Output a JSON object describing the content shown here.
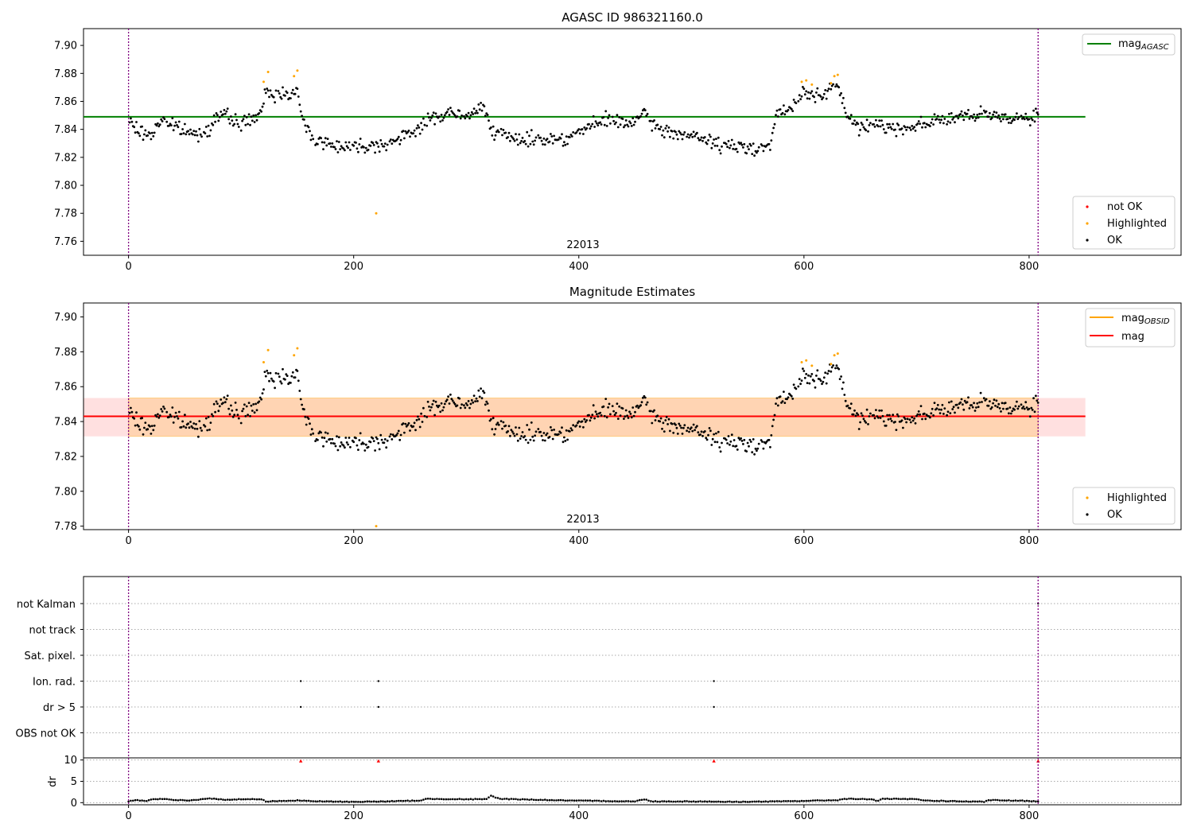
{
  "chart_data": [
    {
      "type": "scatter",
      "title": "AGASC ID 986321160.0",
      "annotation": "22013",
      "xlim": [
        -40,
        935
      ],
      "ylim": [
        7.75,
        7.912
      ],
      "xticks": [
        0,
        200,
        400,
        600,
        800
      ],
      "yticks": [
        7.76,
        7.78,
        7.8,
        7.82,
        7.84,
        7.86,
        7.88,
        7.9
      ],
      "ytick_labels": [
        "7.76",
        "7.78",
        "7.80",
        "7.82",
        "7.84",
        "7.86",
        "7.88",
        "7.90"
      ],
      "obs_boundaries": [
        0,
        808
      ],
      "reference_line": {
        "name": "mag",
        "subscript": "AGASC",
        "y": 7.849,
        "x_range": [
          -40,
          850
        ],
        "color": "#008000"
      },
      "legend_lines": [
        {
          "name": "mag",
          "subscript": "AGASC",
          "color": "#008000"
        }
      ],
      "legend_points": [
        {
          "name": "not OK",
          "color": "#ff0000"
        },
        {
          "name": "Highlighted",
          "color": "#ffa500"
        },
        {
          "name": "OK",
          "color": "#000000"
        }
      ],
      "trend": [
        [
          0,
          7.846
        ],
        [
          10,
          7.838
        ],
        [
          20,
          7.836
        ],
        [
          30,
          7.848
        ],
        [
          40,
          7.842
        ],
        [
          50,
          7.839
        ],
        [
          60,
          7.836
        ],
        [
          70,
          7.84
        ],
        [
          80,
          7.851
        ],
        [
          90,
          7.848
        ],
        [
          100,
          7.844
        ],
        [
          110,
          7.848
        ],
        [
          118,
          7.85
        ],
        [
          122,
          7.868
        ],
        [
          130,
          7.864
        ],
        [
          140,
          7.867
        ],
        [
          150,
          7.866
        ],
        [
          155,
          7.845
        ],
        [
          165,
          7.833
        ],
        [
          180,
          7.829
        ],
        [
          200,
          7.828
        ],
        [
          220,
          7.829
        ],
        [
          240,
          7.832
        ],
        [
          255,
          7.84
        ],
        [
          270,
          7.848
        ],
        [
          285,
          7.852
        ],
        [
          300,
          7.848
        ],
        [
          315,
          7.857
        ],
        [
          325,
          7.838
        ],
        [
          340,
          7.833
        ],
        [
          370,
          7.833
        ],
        [
          390,
          7.834
        ],
        [
          410,
          7.842
        ],
        [
          430,
          7.848
        ],
        [
          440,
          7.843
        ],
        [
          460,
          7.85
        ],
        [
          470,
          7.84
        ],
        [
          490,
          7.837
        ],
        [
          510,
          7.833
        ],
        [
          530,
          7.828
        ],
        [
          550,
          7.827
        ],
        [
          570,
          7.828
        ],
        [
          575,
          7.85
        ],
        [
          590,
          7.855
        ],
        [
          600,
          7.868
        ],
        [
          615,
          7.863
        ],
        [
          630,
          7.871
        ],
        [
          640,
          7.848
        ],
        [
          650,
          7.84
        ],
        [
          665,
          7.845
        ],
        [
          680,
          7.84
        ],
        [
          700,
          7.843
        ],
        [
          720,
          7.847
        ],
        [
          740,
          7.849
        ],
        [
          760,
          7.85
        ],
        [
          780,
          7.849
        ],
        [
          800,
          7.848
        ],
        [
          808,
          7.852
        ]
      ],
      "highlighted_points": [
        [
          120,
          7.874
        ],
        [
          124,
          7.881
        ],
        [
          147,
          7.878
        ],
        [
          150,
          7.882
        ],
        [
          220,
          7.78
        ],
        [
          598,
          7.874
        ],
        [
          602,
          7.875
        ],
        [
          607,
          7.872
        ],
        [
          624,
          7.873
        ],
        [
          627,
          7.878
        ],
        [
          630,
          7.879
        ]
      ]
    },
    {
      "type": "scatter",
      "title": "Magnitude Estimates",
      "annotation": "22013",
      "xlim": [
        -40,
        935
      ],
      "ylim": [
        7.778,
        7.908
      ],
      "xticks": [
        0,
        200,
        400,
        600,
        800
      ],
      "yticks": [
        7.78,
        7.8,
        7.82,
        7.84,
        7.86,
        7.88,
        7.9
      ],
      "ytick_labels": [
        "7.78",
        "7.80",
        "7.82",
        "7.84",
        "7.86",
        "7.88",
        "7.90"
      ],
      "obs_boundaries": [
        0,
        808
      ],
      "mag_obsid": {
        "name": "mag",
        "subscript": "OBSID",
        "y": 7.843,
        "band": [
          7.8315,
          7.8535
        ],
        "x_range": [
          0,
          808
        ],
        "color": "#ffa500"
      },
      "mag": {
        "name": "mag",
        "y": 7.843,
        "band": [
          7.8315,
          7.8535
        ],
        "x_range": [
          -40,
          850
        ],
        "color": "#ff0000"
      },
      "legend_lines": [
        {
          "name": "mag",
          "subscript": "OBSID",
          "color": "#ffa500"
        },
        {
          "name": "mag",
          "color": "#ff0000"
        }
      ],
      "legend_points": [
        {
          "name": "Highlighted",
          "color": "#ffa500"
        },
        {
          "name": "OK",
          "color": "#000000"
        }
      ]
    },
    {
      "type": "scatter",
      "title": "",
      "xlim": [
        -40,
        935
      ],
      "xticks": [
        0,
        200,
        400,
        600,
        800
      ],
      "obs_boundaries": [
        0,
        808
      ],
      "flag_labels": [
        "not Kalman",
        "not track",
        "Sat. pixel.",
        "Ion. rad.",
        "dr > 5",
        "OBS not OK"
      ],
      "flag_points": {
        "Ion. rad.": [
          153,
          222,
          520
        ],
        "dr > 5": [
          153,
          222,
          520
        ],
        "not Kalman": [
          808
        ]
      },
      "dr": {
        "ylabel": "dr",
        "ylim": [
          -0.5,
          10.5
        ],
        "yticks": [
          0,
          5,
          10
        ],
        "base": [
          [
            0,
            0.3
          ],
          [
            8,
            0.6
          ],
          [
            15,
            0.4
          ],
          [
            22,
            0.8
          ],
          [
            30,
            0.9
          ],
          [
            40,
            0.6
          ],
          [
            55,
            0.5
          ],
          [
            70,
            1.0
          ],
          [
            85,
            0.7
          ],
          [
            100,
            0.8
          ],
          [
            118,
            0.8
          ],
          [
            122,
            0.3
          ],
          [
            150,
            0.5
          ],
          [
            170,
            0.3
          ],
          [
            200,
            0.2
          ],
          [
            230,
            0.3
          ],
          [
            260,
            0.5
          ],
          [
            265,
            0.9
          ],
          [
            300,
            0.8
          ],
          [
            318,
            0.8
          ],
          [
            322,
            1.6
          ],
          [
            330,
            0.9
          ],
          [
            360,
            0.7
          ],
          [
            390,
            0.5
          ],
          [
            420,
            0.4
          ],
          [
            450,
            0.3
          ],
          [
            458,
            0.8
          ],
          [
            465,
            0.3
          ],
          [
            500,
            0.3
          ],
          [
            540,
            0.2
          ],
          [
            580,
            0.3
          ],
          [
            630,
            0.6
          ],
          [
            636,
            0.9
          ],
          [
            660,
            0.8
          ],
          [
            665,
            0.4
          ],
          [
            670,
            0.9
          ],
          [
            700,
            0.8
          ],
          [
            708,
            0.5
          ],
          [
            740,
            0.3
          ],
          [
            760,
            0.2
          ],
          [
            765,
            0.6
          ],
          [
            800,
            0.4
          ],
          [
            808,
            0.3
          ]
        ],
        "spikes": [
          [
            153,
            9.7
          ],
          [
            222,
            9.7
          ],
          [
            520,
            9.7
          ],
          [
            808,
            9.7
          ]
        ]
      }
    }
  ]
}
